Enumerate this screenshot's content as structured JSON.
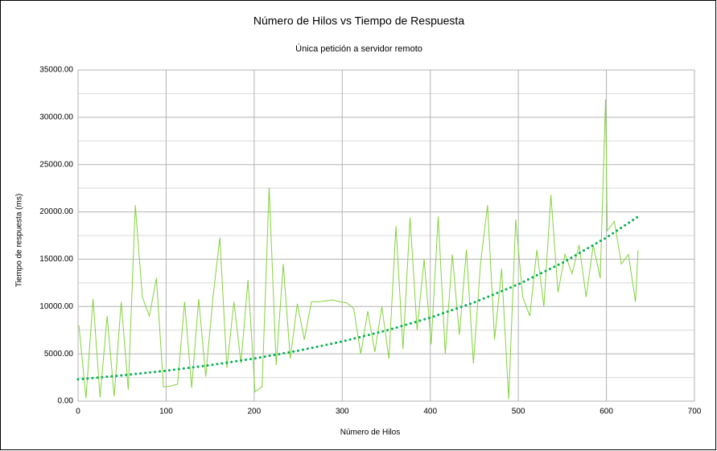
{
  "chart_data": {
    "type": "line",
    "title": "Número de Hilos vs Tiempo de Respuesta",
    "subtitle": "Única petición a servidor remoto",
    "x_label": "Número de Hilos",
    "y_label": "Tiempo de respuesta (ms)",
    "xlim": [
      0,
      700
    ],
    "xticks": [
      0,
      100,
      200,
      300,
      400,
      500,
      600,
      700
    ],
    "ylim": [
      0,
      35000
    ],
    "yticks": [
      {
        "value": 0,
        "label": "0.00"
      },
      {
        "value": 5000,
        "label": "5000.00"
      },
      {
        "value": 10000,
        "label": "10000.00"
      },
      {
        "value": 15000,
        "label": "15000.00"
      },
      {
        "value": 20000,
        "label": "20000.00"
      },
      {
        "value": 25000,
        "label": "25000.00"
      },
      {
        "value": 30000,
        "label": "30000.00"
      },
      {
        "value": 35000,
        "label": "35000.00"
      }
    ],
    "minor_yticks": [
      2500,
      7500,
      12500,
      17500,
      22500,
      27500,
      32500
    ],
    "grid": true,
    "series": [
      {
        "color": "#83d33b",
        "style": "solid",
        "x": [
          1,
          9,
          17,
          25,
          33,
          41,
          49,
          57,
          65,
          73,
          81,
          89,
          97,
          105,
          113,
          121,
          129,
          137,
          145,
          153,
          161,
          169,
          177,
          185,
          193,
          201,
          209,
          217,
          225,
          233,
          241,
          249,
          257,
          265,
          273,
          281,
          289,
          297,
          305,
          313,
          321,
          329,
          337,
          345,
          353,
          361,
          369,
          377,
          385,
          393,
          401,
          409,
          417,
          425,
          433,
          441,
          449,
          457,
          465,
          473,
          481,
          489,
          497,
          505,
          513,
          521,
          529,
          537,
          545,
          553,
          561,
          569,
          577,
          585,
          593,
          599,
          601,
          609,
          617,
          625,
          633,
          636
        ],
        "values": [
          8000,
          300,
          10800,
          400,
          9000,
          500,
          10500,
          1200,
          20700,
          11000,
          9000,
          13000,
          1500,
          1600,
          1800,
          10500,
          1400,
          10800,
          2600,
          10800,
          17300,
          3500,
          10500,
          4000,
          12800,
          1000,
          1500,
          22600,
          3800,
          14500,
          4500,
          10300,
          6500,
          10500,
          10500,
          10600,
          10700,
          10500,
          10400,
          9800,
          5000,
          9500,
          5200,
          10000,
          4500,
          18500,
          5500,
          19400,
          7500,
          15000,
          6000,
          19500,
          5000,
          15500,
          7000,
          16000,
          4000,
          14500,
          20700,
          6500,
          14000,
          200,
          19200,
          11000,
          9000,
          16000,
          10000,
          21800,
          11500,
          15500,
          13500,
          16500,
          11000,
          16500,
          13000,
          31900,
          18000,
          19000,
          14500,
          15500,
          10500,
          16000
        ]
      },
      {
        "color": "#00b050",
        "style": "dotted",
        "x": [
          0,
          50,
          100,
          150,
          200,
          250,
          300,
          350,
          400,
          450,
          500,
          550,
          600,
          636
        ],
        "values": [
          2300,
          2721,
          3219,
          3808,
          4505,
          5330,
          6305,
          7459,
          8825,
          10440,
          12351,
          14612,
          17287,
          19500
        ]
      }
    ]
  }
}
